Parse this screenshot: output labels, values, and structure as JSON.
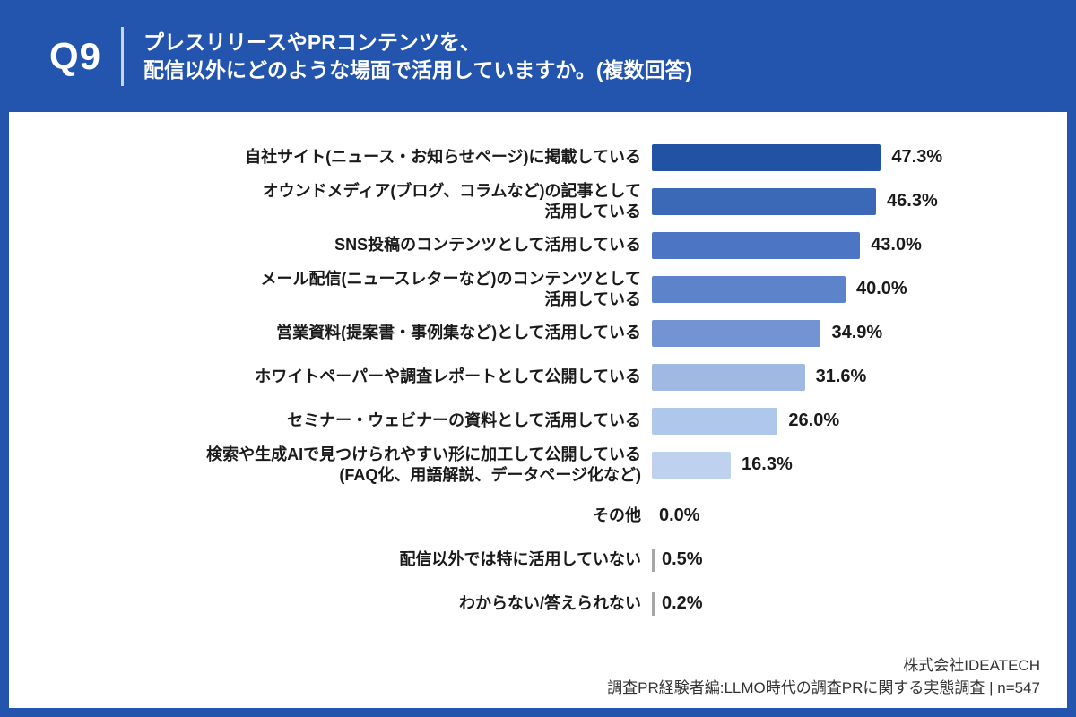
{
  "page": {
    "bg_color": "#2355AE",
    "card_bg": "#FFFFFF"
  },
  "header": {
    "question_no": "Q9",
    "title_line1": "プレスリリースやPRコンテンツを、",
    "title_line2": "配信以外にどのような場面で活用していますか。(複数回答)"
  },
  "footer": {
    "company": "株式会社IDEATECH",
    "source": "調査PR経験者編:LLMO時代の調査PRに関する実態調査 | n=547"
  },
  "chart_data": {
    "type": "bar",
    "orientation": "horizontal",
    "title": "プレスリリースやPRコンテンツを、配信以外にどのような場面で活用していますか。(複数回答)",
    "categories": [
      "自社サイト(ニュース・お知らせページ)に掲載している",
      "オウンドメディア(ブログ、コラムなど)の記事として活用している",
      "SNS投稿のコンテンツとして活用している",
      "メール配信(ニュースレターなど)のコンテンツとして活用している",
      "営業資料(提案書・事例集など)として活用している",
      "ホワイトペーパーや調査レポートとして公開している",
      "セミナー・ウェビナーの資料として活用している",
      "検索や生成AIで見つけられやすい形に加工して公開している(FAQ化、用語解説、データページ化など)",
      "その他",
      "配信以外では特に活用していない",
      "わからない/答えられない"
    ],
    "values": [
      47.3,
      46.3,
      43.0,
      40.0,
      34.9,
      31.6,
      26.0,
      16.3,
      0.0,
      0.5,
      0.2
    ],
    "value_labels": [
      "47.3%",
      "46.3%",
      "43.0%",
      "40.0%",
      "34.9%",
      "31.6%",
      "26.0%",
      "16.3%",
      "0.0%",
      "0.5%",
      "0.2%"
    ],
    "bar_colors": [
      "#2152A3",
      "#3C69B7",
      "#4C76C4",
      "#5D83CB",
      "#7493D3",
      "#9FB9E2",
      "#AFC7EA",
      "#BED2F0",
      null,
      "#A6A6A6",
      "#A6A6A6"
    ],
    "xlim": [
      0,
      50
    ],
    "unit": "%",
    "grid": false,
    "legend": false,
    "n": 547
  },
  "rows": [
    {
      "label_lines": [
        "自社サイト(ニュース・お知らせページ)に掲載している"
      ],
      "value": 47.3,
      "pct": "47.3%",
      "color": "#2152A3"
    },
    {
      "label_lines": [
        "オウンドメディア(ブログ、コラムなど)の記事として",
        "活用している"
      ],
      "value": 46.3,
      "pct": "46.3%",
      "color": "#3C69B7"
    },
    {
      "label_lines": [
        "SNS投稿のコンテンツとして活用している"
      ],
      "value": 43.0,
      "pct": "43.0%",
      "color": "#4C76C4"
    },
    {
      "label_lines": [
        "メール配信(ニュースレターなど)のコンテンツとして",
        "活用している"
      ],
      "value": 40.0,
      "pct": "40.0%",
      "color": "#5D83CB"
    },
    {
      "label_lines": [
        "営業資料(提案書・事例集など)として活用している"
      ],
      "value": 34.9,
      "pct": "34.9%",
      "color": "#7493D3"
    },
    {
      "label_lines": [
        "ホワイトペーパーや調査レポートとして公開している"
      ],
      "value": 31.6,
      "pct": "31.6%",
      "color": "#9FB9E2"
    },
    {
      "label_lines": [
        "セミナー・ウェビナーの資料として活用している"
      ],
      "value": 26.0,
      "pct": "26.0%",
      "color": "#AFC7EA"
    },
    {
      "label_lines": [
        "検索や生成AIで見つけられやすい形に加工して公開している",
        "(FAQ化、用語解説、データページ化など)"
      ],
      "value": 16.3,
      "pct": "16.3%",
      "color": "#BED2F0"
    },
    {
      "label_lines": [
        "その他"
      ],
      "value": 0.0,
      "pct": "0.0%",
      "color": null,
      "gap_before": true
    },
    {
      "label_lines": [
        "配信以外では特に活用していない"
      ],
      "value": 0.5,
      "pct": "0.5%",
      "color": "#A6A6A6"
    },
    {
      "label_lines": [
        "わからない/答えられない"
      ],
      "value": 0.2,
      "pct": "0.2%",
      "color": "#A6A6A6"
    }
  ]
}
